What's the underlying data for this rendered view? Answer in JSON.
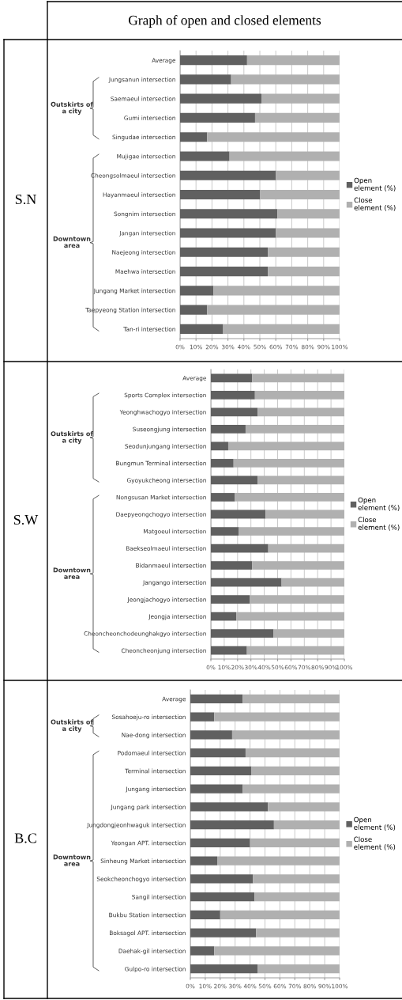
{
  "chart_data": [
    {
      "type": "bar",
      "orientation": "horizontal",
      "stacked": true,
      "title": "Graph of open and closed elements",
      "ylabel": "S.N",
      "categories": [
        "Average",
        "Jungsanun intersection",
        "Saemaeul intersection",
        "Gumi intersection",
        "Singudae intersection",
        "Mujigae intersection",
        "Cheongsolmaeul intersection",
        "Hayanmaeul intersection",
        "Songnim intersection",
        "Jangan intersection",
        "Naejeong intersection",
        "Maehwa intersection",
        "Jungang Market intersection",
        "Taepyeong Station intersection",
        "Tan-ri intersection"
      ],
      "series": [
        {
          "name": "Open element (%)",
          "color": "#606060",
          "values": [
            42,
            32,
            51,
            47,
            17,
            31,
            60,
            50,
            61,
            60,
            55,
            55,
            21,
            17,
            27
          ]
        },
        {
          "name": "Close element (%)",
          "color": "#b0b0b0",
          "values": [
            58,
            68,
            49,
            53,
            83,
            69,
            40,
            50,
            39,
            40,
            45,
            45,
            79,
            83,
            73
          ]
        }
      ],
      "annotations": [
        "Outskirts of a city",
        "Downtown area"
      ],
      "xlim": [
        0,
        100
      ],
      "xticks": [
        {
          "value": 0,
          "label": "0%"
        },
        {
          "value": 10,
          "label": "10%"
        },
        {
          "value": 20,
          "label": "20%"
        },
        {
          "value": 30,
          "label": "30%"
        },
        {
          "value": 40,
          "label": "40%"
        },
        {
          "value": 50,
          "label": "50%"
        },
        {
          "value": 60,
          "label": "60%"
        },
        {
          "value": 70,
          "label": "70%"
        },
        {
          "value": 80,
          "label": "80%"
        },
        {
          "value": 90,
          "label": "90%"
        },
        {
          "value": 100,
          "label": "100%"
        }
      ],
      "grid": "x",
      "legend": "right"
    },
    {
      "type": "bar",
      "orientation": "horizontal",
      "stacked": true,
      "ylabel": "S.W",
      "categories": [
        "Average",
        "Sports Complex intersection",
        "Yeonghwachogyo intersection",
        "Suseongjung intersection",
        "Seodunjungang intersection",
        "Bungmun Terminal intersection",
        "Gyoyukcheong intersection",
        "Nongsusan Market intersection",
        "Daepyeongchogyo intersection",
        "Matgoeul intersection",
        "Baekseolmaeul intersection",
        "Bidanmaeul intersection",
        "Jangango intersection",
        "Jeongjachogyo intersection",
        "Jeongja intersection",
        "Cheoncheonchodeunghakgyo intersection",
        "Cheoncheonjung intersection"
      ],
      "series": [
        {
          "name": "Open element (%)",
          "color": "#606060",
          "values": [
            31,
            33,
            35,
            26,
            13,
            17,
            35,
            18,
            41,
            21,
            43,
            31,
            53,
            29,
            19,
            47,
            27
          ]
        },
        {
          "name": "Close element (%)",
          "color": "#b0b0b0",
          "values": [
            69,
            67,
            65,
            74,
            87,
            83,
            65,
            82,
            59,
            79,
            57,
            69,
            47,
            71,
            81,
            53,
            73
          ]
        }
      ],
      "annotations": [
        "Outskirts of a city",
        "Downtown area"
      ],
      "xlim": [
        0,
        100
      ],
      "xticks": [
        {
          "value": 0,
          "label": "0%"
        },
        {
          "value": 10,
          "label": "10%"
        },
        {
          "value": 20,
          "label": "20%"
        },
        {
          "value": 30,
          "label": "30%"
        },
        {
          "value": 40,
          "label": "40%"
        },
        {
          "value": 50,
          "label": "50%"
        },
        {
          "value": 60,
          "label": "60%"
        },
        {
          "value": 70,
          "label": "70%"
        },
        {
          "value": 80,
          "label": "80%"
        },
        {
          "value": 90,
          "label": "90%"
        },
        {
          "value": 100,
          "label": "100%"
        }
      ],
      "grid": "x",
      "legend": "right"
    },
    {
      "type": "bar",
      "orientation": "horizontal",
      "stacked": true,
      "ylabel": "B.C",
      "categories": [
        "Average",
        "Sosahoeju-ro intersection",
        "Nae-dong intersection",
        "Podomaeul intersection",
        "Terminal intersection",
        "Jungang intersection",
        "Jungang park intersection",
        "Jungdongjeonhwaguk intersection",
        "Yeongan APT. intersection",
        "Sinheung Market intersection",
        "Seokcheonchogyo intersection",
        "Sangil intersection",
        "Bukbu Station intersection",
        "Boksagol APT. intersection",
        "Daehak-gil intersection",
        "Gulpo-ro intersection"
      ],
      "series": [
        {
          "name": "Open element (%)",
          "color": "#606060",
          "values": [
            35,
            16,
            28,
            37,
            41,
            35,
            52,
            56,
            40,
            18,
            42,
            43,
            20,
            44,
            16,
            45
          ]
        },
        {
          "name": "Close element (%)",
          "color": "#b0b0b0",
          "values": [
            65,
            84,
            72,
            63,
            59,
            65,
            48,
            44,
            60,
            82,
            58,
            57,
            80,
            56,
            84,
            55
          ]
        }
      ],
      "annotations": [
        "Outskirts of a city",
        "Downtown area"
      ],
      "xlim": [
        0,
        100
      ],
      "xticks": [
        {
          "value": 0,
          "label": "0%"
        },
        {
          "value": 10,
          "label": "10%"
        },
        {
          "value": 20,
          "label": "20%"
        },
        {
          "value": 30,
          "label": "30%"
        },
        {
          "value": 40,
          "label": "40%"
        },
        {
          "value": 50,
          "label": "50%"
        },
        {
          "value": 60,
          "label": "60%"
        },
        {
          "value": 70,
          "label": "70%"
        },
        {
          "value": 80,
          "label": "80%"
        },
        {
          "value": 90,
          "label": "90%"
        },
        {
          "value": 100,
          "label": "100%"
        }
      ],
      "grid": "x",
      "legend": "right"
    }
  ]
}
